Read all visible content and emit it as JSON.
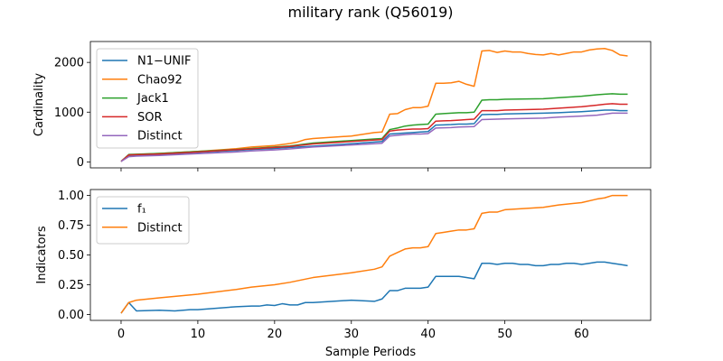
{
  "title": "military rank (Q56019)",
  "chart_data": [
    {
      "type": "line",
      "ylabel": "Cardinality",
      "xlabel": "",
      "xlim": [
        -4,
        69
      ],
      "ylim": [
        -120,
        2420
      ],
      "xticks": [
        0,
        10,
        20,
        30,
        40,
        50,
        60
      ],
      "yticks": [
        0,
        1000,
        2000
      ],
      "legend": "top-left",
      "series": [
        {
          "name": "N1−UNIF",
          "color": "#1f77b4",
          "x": [
            0,
            1,
            2,
            5,
            10,
            15,
            17,
            20,
            22,
            25,
            30,
            33,
            34,
            35,
            37,
            38,
            39,
            40,
            41,
            42,
            43,
            44,
            45,
            46,
            47,
            48,
            49,
            50,
            55,
            57,
            60,
            62,
            63,
            64,
            65,
            66
          ],
          "y": [
            10,
            125,
            135,
            150,
            190,
            230,
            250,
            270,
            290,
            315,
            365,
            400,
            410,
            560,
            580,
            590,
            600,
            610,
            740,
            745,
            750,
            760,
            760,
            770,
            950,
            955,
            955,
            965,
            980,
            990,
            1010,
            1030,
            1040,
            1040,
            1030,
            1030
          ]
        },
        {
          "name": "Chao92",
          "color": "#ff7f0e",
          "x": [
            0,
            1,
            2,
            5,
            10,
            15,
            17,
            20,
            22,
            23,
            24,
            25,
            30,
            33,
            34,
            35,
            36,
            37,
            38,
            39,
            40,
            41,
            42,
            43,
            44,
            45,
            46,
            47,
            48,
            49,
            50,
            51,
            52,
            53,
            54,
            55,
            56,
            57,
            58,
            59,
            60,
            61,
            62,
            63,
            64,
            65,
            66
          ],
          "y": [
            10,
            140,
            150,
            170,
            210,
            265,
            300,
            330,
            370,
            400,
            450,
            470,
            520,
            590,
            600,
            960,
            970,
            1050,
            1090,
            1090,
            1120,
            1580,
            1580,
            1590,
            1620,
            1560,
            1520,
            2230,
            2240,
            2200,
            2230,
            2210,
            2210,
            2180,
            2160,
            2150,
            2180,
            2150,
            2180,
            2210,
            2210,
            2250,
            2270,
            2280,
            2240,
            2150,
            2130
          ]
        },
        {
          "name": "Jack1",
          "color": "#2ca02c",
          "x": [
            0,
            1,
            2,
            5,
            10,
            15,
            17,
            20,
            22,
            25,
            30,
            33,
            34,
            35,
            36,
            37,
            38,
            39,
            40,
            41,
            42,
            43,
            44,
            45,
            46,
            47,
            48,
            49,
            50,
            55,
            57,
            60,
            62,
            63,
            64,
            65,
            66
          ],
          "y": [
            10,
            150,
            155,
            170,
            210,
            250,
            270,
            300,
            320,
            380,
            430,
            460,
            470,
            650,
            680,
            720,
            740,
            750,
            760,
            960,
            970,
            980,
            990,
            990,
            1000,
            1240,
            1250,
            1250,
            1260,
            1270,
            1290,
            1320,
            1350,
            1360,
            1370,
            1360,
            1360
          ]
        },
        {
          "name": "SOR",
          "color": "#d62728",
          "x": [
            0,
            1,
            2,
            5,
            10,
            15,
            17,
            20,
            22,
            25,
            30,
            33,
            34,
            35,
            36,
            37,
            38,
            39,
            40,
            41,
            42,
            43,
            44,
            45,
            46,
            47,
            48,
            49,
            50,
            55,
            57,
            60,
            62,
            63,
            64,
            65,
            66
          ],
          "y": [
            10,
            140,
            145,
            160,
            200,
            245,
            260,
            290,
            310,
            360,
            410,
            440,
            450,
            620,
            640,
            650,
            660,
            660,
            670,
            820,
            825,
            830,
            840,
            850,
            860,
            1030,
            1030,
            1030,
            1040,
            1060,
            1080,
            1110,
            1140,
            1160,
            1170,
            1160,
            1160
          ]
        },
        {
          "name": "Distinct",
          "color": "#9467bd",
          "x": [
            0,
            1,
            2,
            5,
            10,
            15,
            17,
            20,
            22,
            25,
            30,
            33,
            34,
            35,
            36,
            37,
            38,
            39,
            40,
            41,
            42,
            43,
            44,
            45,
            46,
            47,
            48,
            49,
            50,
            55,
            57,
            60,
            62,
            63,
            64,
            65,
            66
          ],
          "y": [
            10,
            105,
            115,
            130,
            165,
            200,
            220,
            240,
            260,
            300,
            340,
            365,
            375,
            520,
            535,
            550,
            560,
            560,
            570,
            680,
            685,
            690,
            700,
            705,
            710,
            850,
            855,
            860,
            865,
            880,
            900,
            920,
            940,
            960,
            980,
            980,
            980
          ]
        }
      ]
    },
    {
      "type": "line",
      "ylabel": "Indicators",
      "xlabel": "Sample Periods",
      "xlim": [
        -4,
        69
      ],
      "ylim": [
        -0.05,
        1.05
      ],
      "xticks": [
        0,
        10,
        20,
        30,
        40,
        50,
        60
      ],
      "yticks": [
        "0.00",
        "0.25",
        "0.50",
        "0.75",
        "1.00"
      ],
      "legend": "top-left",
      "series": [
        {
          "name": "f₁",
          "color": "#1f77b4",
          "x": [
            0,
            1,
            2,
            5,
            7,
            9,
            10,
            15,
            17,
            18,
            19,
            20,
            21,
            22,
            23,
            24,
            25,
            30,
            33,
            34,
            35,
            36,
            37,
            38,
            39,
            40,
            41,
            42,
            43,
            44,
            45,
            46,
            47,
            48,
            49,
            50,
            51,
            52,
            53,
            54,
            55,
            56,
            57,
            58,
            59,
            60,
            61,
            62,
            63,
            64,
            65,
            66
          ],
          "y": [
            0.01,
            0.1,
            0.03,
            0.035,
            0.03,
            0.04,
            0.04,
            0.065,
            0.07,
            0.07,
            0.08,
            0.075,
            0.09,
            0.08,
            0.08,
            0.1,
            0.1,
            0.12,
            0.11,
            0.13,
            0.2,
            0.2,
            0.22,
            0.22,
            0.22,
            0.23,
            0.32,
            0.32,
            0.32,
            0.32,
            0.31,
            0.3,
            0.43,
            0.43,
            0.42,
            0.43,
            0.43,
            0.42,
            0.42,
            0.41,
            0.41,
            0.42,
            0.42,
            0.43,
            0.43,
            0.42,
            0.43,
            0.44,
            0.44,
            0.43,
            0.42,
            0.41
          ]
        },
        {
          "name": "Distinct",
          "color": "#ff7f0e",
          "x": [
            0,
            1,
            2,
            5,
            10,
            15,
            17,
            20,
            22,
            25,
            30,
            33,
            34,
            35,
            36,
            37,
            38,
            39,
            40,
            41,
            42,
            43,
            44,
            45,
            46,
            47,
            48,
            49,
            50,
            55,
            57,
            60,
            62,
            63,
            64,
            65,
            66
          ],
          "y": [
            0.01,
            0.1,
            0.12,
            0.14,
            0.17,
            0.21,
            0.23,
            0.25,
            0.27,
            0.31,
            0.35,
            0.38,
            0.4,
            0.49,
            0.52,
            0.55,
            0.56,
            0.56,
            0.57,
            0.68,
            0.69,
            0.7,
            0.71,
            0.71,
            0.72,
            0.85,
            0.86,
            0.86,
            0.88,
            0.9,
            0.92,
            0.94,
            0.97,
            0.98,
            1.0,
            1.0,
            1.0
          ]
        }
      ]
    }
  ]
}
